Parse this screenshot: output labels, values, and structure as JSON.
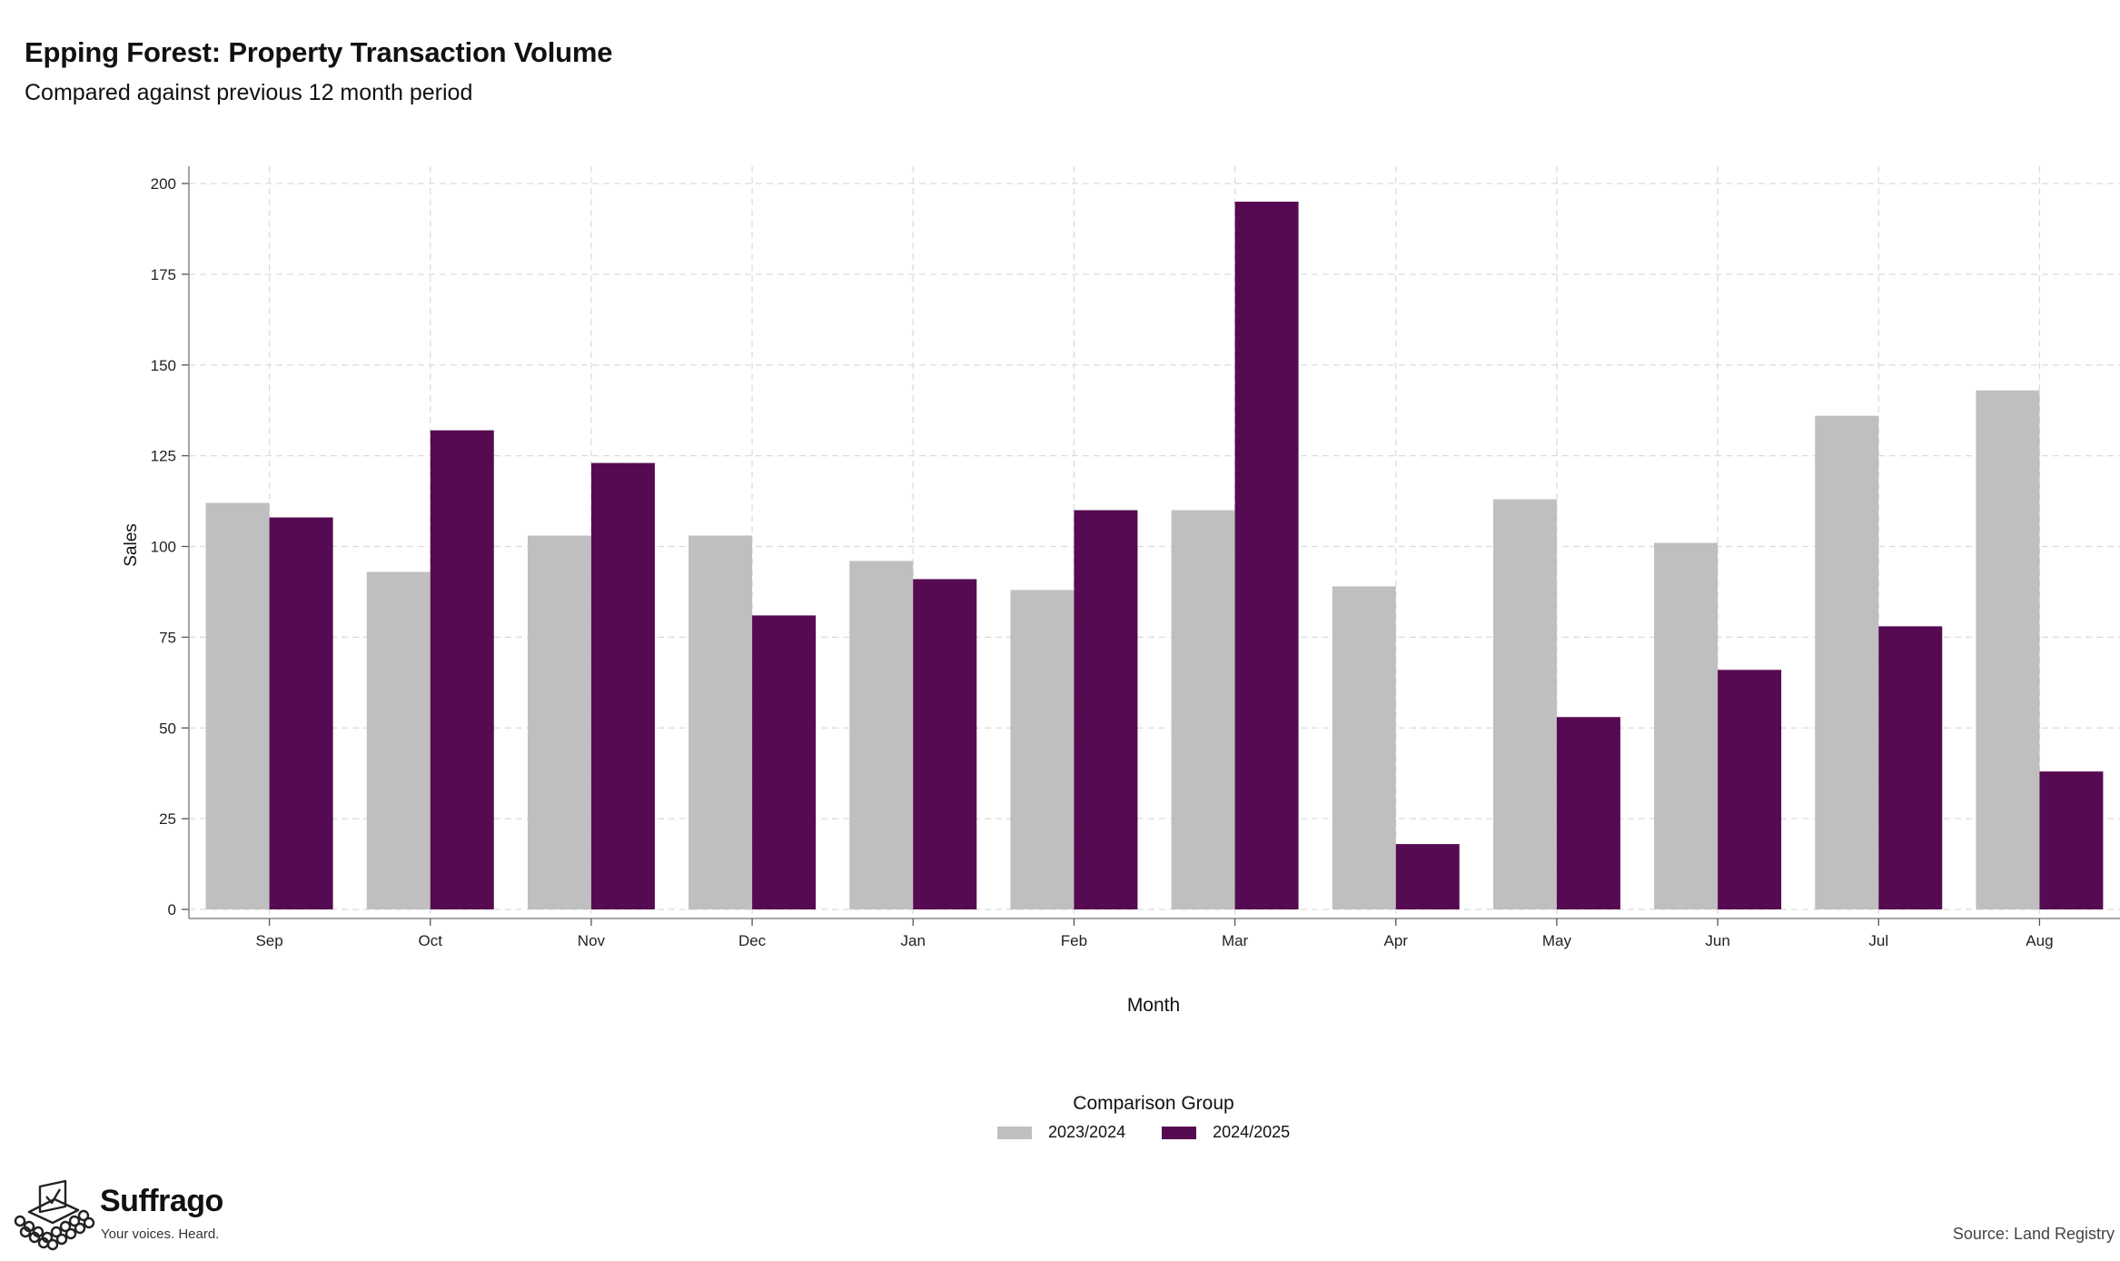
{
  "header": {
    "title": "Epping Forest: Property Transaction Volume",
    "subtitle": "Compared against previous 12 month period"
  },
  "legend": {
    "title": "Comparison Group",
    "items": [
      {
        "label": "2023/2024",
        "color": "#bfbfbf"
      },
      {
        "label": "2024/2025",
        "color": "#560a52"
      }
    ]
  },
  "branding": {
    "name": "Suffrago",
    "tagline": "Your voices. Heard.",
    "logo_icon": "ballot-box-icon"
  },
  "footer": {
    "source": "Source: Land Registry"
  },
  "chart_data": {
    "type": "bar",
    "xlabel": "Month",
    "ylabel": "Sales",
    "ylim": [
      0,
      200
    ],
    "yticks": [
      0,
      25,
      50,
      75,
      100,
      125,
      150,
      175,
      200
    ],
    "grid": true,
    "legend_position": "bottom",
    "categories": [
      "Sep",
      "Oct",
      "Nov",
      "Dec",
      "Jan",
      "Feb",
      "Mar",
      "Apr",
      "May",
      "Jun",
      "Jul",
      "Aug"
    ],
    "series": [
      {
        "name": "2023/2024",
        "color": "#bfbfbf",
        "values": [
          112,
          93,
          103,
          103,
          96,
          88,
          110,
          89,
          113,
          101,
          136,
          143
        ]
      },
      {
        "name": "2024/2025",
        "color": "#560a52",
        "values": [
          108,
          132,
          123,
          81,
          91,
          110,
          195,
          18,
          53,
          66,
          78,
          38
        ]
      }
    ]
  }
}
